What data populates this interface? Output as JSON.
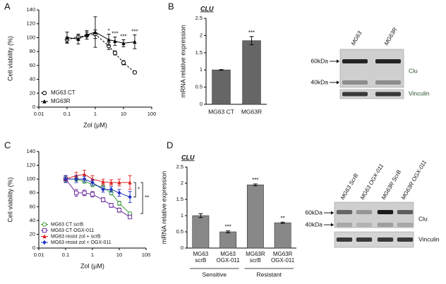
{
  "chart_data": [
    {
      "panel": "A",
      "type": "line",
      "xscale": "log",
      "xlabel": "Zol (µM)",
      "ylabel": "Cell viability (%)",
      "xlim": [
        0.01,
        100
      ],
      "xticks": [
        0.01,
        0.1,
        1,
        10,
        100
      ],
      "ylim": [
        0,
        140
      ],
      "yticks": [
        0,
        20,
        40,
        60,
        80,
        100,
        120,
        140
      ],
      "legend": "lower left",
      "x": [
        0.1,
        0.25,
        0.5,
        1,
        3,
        5,
        10,
        25
      ],
      "series": [
        {
          "name": "MG63 CT",
          "color": "#000000",
          "marker": "circle-open",
          "dash": true,
          "values": [
            97,
            101,
            103,
            105,
            88,
            78,
            64,
            50
          ],
          "errors": [
            4,
            4,
            5,
            6,
            5,
            3,
            3,
            2
          ]
        },
        {
          "name": "MG63R",
          "color": "#000000",
          "marker": "triangle",
          "dash": false,
          "values": [
            100,
            98,
            104,
            108,
            97,
            95,
            92,
            94
          ],
          "errors": [
            8,
            7,
            6,
            22,
            8,
            6,
            5,
            10
          ]
        }
      ],
      "significance": [
        null,
        null,
        null,
        null,
        "*",
        "***",
        "***",
        "***"
      ]
    },
    {
      "panel": "B",
      "type": "bar",
      "title": "CLU",
      "ylabel": "mRNA relative expression",
      "categories": [
        "MG63 CT",
        "MG63R"
      ],
      "values": [
        1,
        1.85
      ],
      "errors": [
        0.01,
        0.12
      ],
      "color": "#666666",
      "ylim": [
        0,
        2.5
      ],
      "yticks": [
        0,
        0.5,
        1,
        1.5,
        2,
        2.5
      ],
      "significance": [
        null,
        "***"
      ]
    },
    {
      "panel": "C",
      "type": "line",
      "xscale": "log",
      "xlabel": "Zol (µM)",
      "ylabel": "Cell viability (%)",
      "xlim": [
        0.01,
        100
      ],
      "xticks": [
        0.01,
        0.1,
        1,
        10,
        100
      ],
      "ylim": [
        0,
        140
      ],
      "yticks": [
        0,
        20,
        40,
        60,
        80,
        100,
        120,
        140
      ],
      "legend": "lower left",
      "x": [
        0.1,
        0.25,
        0.5,
        1,
        2.5,
        5,
        10,
        25
      ],
      "series": [
        {
          "name": "MG63 CT scrB",
          "color": "#3a9a3a",
          "marker": "circle-open",
          "dash": false,
          "values": [
            100,
            100,
            97,
            92,
            88,
            80,
            65,
            50
          ],
          "errors": [
            4,
            3,
            3,
            3,
            3,
            3,
            3,
            2
          ]
        },
        {
          "name": "MG63 CT OGX-011",
          "color": "#7030a0",
          "marker": "square-open",
          "dash": false,
          "values": [
            100,
            80,
            80,
            78,
            70,
            62,
            55,
            45
          ],
          "errors": [
            5,
            5,
            4,
            4,
            3,
            3,
            3,
            2
          ]
        },
        {
          "name": "MG63 resist zol + scrB",
          "color": "#e02020",
          "marker": "triangle",
          "dash": false,
          "values": [
            100,
            105,
            107,
            100,
            96,
            95,
            95,
            95
          ],
          "errors": [
            5,
            5,
            6,
            5,
            4,
            4,
            5,
            10
          ]
        },
        {
          "name": "MG63 resist zol + OGX-011",
          "color": "#2030c0",
          "marker": "diamond",
          "dash": false,
          "values": [
            100,
            100,
            100,
            95,
            85,
            85,
            80,
            74
          ],
          "errors": [
            5,
            5,
            4,
            4,
            4,
            4,
            5,
            8
          ]
        }
      ],
      "annotations": [
        "*",
        "**"
      ]
    },
    {
      "panel": "D",
      "type": "bar",
      "title": "CLU",
      "ylabel": "mRNA relative expression",
      "categories": [
        [
          "MG63",
          "scrB"
        ],
        [
          "MG63",
          "OGX-011"
        ],
        [
          "MG63R",
          "scrB"
        ],
        [
          "MG63R",
          "OGX-011"
        ]
      ],
      "values": [
        1,
        0.5,
        1.95,
        0.78
      ],
      "errors": [
        0.06,
        0.03,
        0.03,
        0.02
      ],
      "color": "#888888",
      "ylim": [
        0,
        2.5
      ],
      "yticks": [
        0,
        0.5,
        1,
        1.5,
        2,
        2.5
      ],
      "significance": [
        null,
        "***",
        "***",
        "**"
      ],
      "groups": [
        "Sensitive",
        "Resistant"
      ]
    }
  ],
  "blots": [
    {
      "lanes": [
        "MG63",
        "MG63R"
      ],
      "sizes": [
        "60kDa",
        "40kDa"
      ],
      "proteins": [
        "Clu",
        "Vinculin"
      ]
    },
    {
      "lanes": [
        "MG63 ScrB",
        "MG63 OGX-011",
        "MG63R ScrB",
        "MG63R OGX-011"
      ],
      "sizes": [
        "60kDa",
        "40kDa"
      ],
      "proteins": [
        "Clu",
        "Vinculin"
      ]
    }
  ]
}
